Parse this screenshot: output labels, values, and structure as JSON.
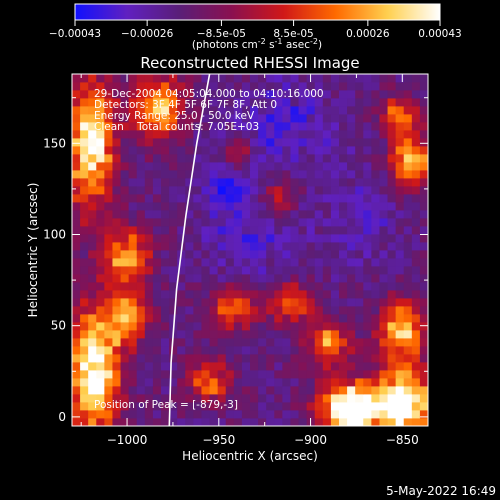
{
  "colorbar": {
    "ticks": [
      "-0.00043",
      "-0.00026",
      "-8.5e-05",
      "8.5e-05",
      "0.00026",
      "0.00043"
    ],
    "units_main": "(photons cm",
    "units_sup1": "-2",
    "units_mid1": " s",
    "units_sup2": "-1",
    "units_mid2": " asec",
    "units_sup3": "-2",
    "units_end": ")",
    "range": [
      -0.00043,
      0.00043
    ]
  },
  "plot": {
    "title": "Reconstructed RHESSI Image",
    "xlabel": "Heliocentric X (arcsec)",
    "ylabel": "Heliocentric Y (arcsec)"
  },
  "annotations": {
    "time": "29-Dec-2004 04:05:04.000 to 04:10:16.000",
    "detectors": "Detectors: 3F 4F 5F 6F 7F 8F, Att 0",
    "energy": "Energy Range: 25.0 - 50.0 keV",
    "clean": "Clean    Total counts: 7.05E+03",
    "peak": "Position of Peak = [-879,-3]"
  },
  "footer": {
    "timestamp": "5-May-2022 16:49"
  },
  "chart_data": {
    "type": "heatmap",
    "title": "Reconstructed RHESSI Image",
    "xlabel": "Heliocentric X (arcsec)",
    "ylabel": "Heliocentric Y (arcsec)",
    "xlim": [
      -1030,
      -836
    ],
    "ylim": [
      -5,
      188
    ],
    "xticks": [
      -1000,
      -950,
      -900,
      -850
    ],
    "yticks": [
      0,
      50,
      100,
      150
    ],
    "xtick_labels": [
      "−1000",
      "−950",
      "−900",
      "−850"
    ],
    "ytick_labels": [
      "0",
      "50",
      "100",
      "150"
    ],
    "colorscale": [
      "#1010ff",
      "#6020c0",
      "#5a1e78",
      "#8a1050",
      "#d01818",
      "#ff6a00",
      "#ffd050",
      "#ffffff"
    ],
    "grid": false,
    "limb_curve": [
      [
        -977,
        -5
      ],
      [
        -976,
        30
      ],
      [
        -973,
        70
      ],
      [
        -968,
        110
      ],
      [
        -962,
        150
      ],
      [
        -955,
        188
      ]
    ],
    "hotspots": [
      {
        "x": -877,
        "y": 5,
        "sx": 12,
        "sy": 10,
        "v": 1.0
      },
      {
        "x": -848,
        "y": 8,
        "sx": 10,
        "sy": 14,
        "v": 0.8
      },
      {
        "x": -1018,
        "y": 25,
        "sx": 10,
        "sy": 24,
        "v": 0.8
      },
      {
        "x": -1020,
        "y": 150,
        "sx": 9,
        "sy": 25,
        "v": 0.75
      },
      {
        "x": -983,
        "y": 170,
        "sx": 10,
        "sy": 12,
        "v": 0.6
      },
      {
        "x": -1000,
        "y": 88,
        "sx": 9,
        "sy": 11,
        "v": 0.55
      },
      {
        "x": -845,
        "y": 140,
        "sx": 8,
        "sy": 10,
        "v": 0.65
      },
      {
        "x": -852,
        "y": 165,
        "sx": 7,
        "sy": 7,
        "v": 0.5
      },
      {
        "x": -850,
        "y": 48,
        "sx": 9,
        "sy": 11,
        "v": 0.6
      },
      {
        "x": -942,
        "y": 60,
        "sx": 9,
        "sy": 8,
        "v": 0.45
      },
      {
        "x": -910,
        "y": 62,
        "sx": 8,
        "sy": 8,
        "v": 0.45
      },
      {
        "x": -890,
        "y": 40,
        "sx": 8,
        "sy": 8,
        "v": 0.5
      },
      {
        "x": -955,
        "y": 20,
        "sx": 8,
        "sy": 8,
        "v": 0.45
      },
      {
        "x": -1000,
        "y": 55,
        "sx": 8,
        "sy": 10,
        "v": 0.5
      },
      {
        "x": -917,
        "y": 120,
        "sx": 7,
        "sy": 7,
        "v": 0.35
      },
      {
        "x": -940,
        "y": 145,
        "sx": 6,
        "sy": 6,
        "v": 0.3
      }
    ],
    "coldspots": [
      {
        "x": -915,
        "y": 160,
        "sx": 22,
        "sy": 18,
        "v": 0.5
      },
      {
        "x": -930,
        "y": 100,
        "sx": 20,
        "sy": 18,
        "v": 0.45
      },
      {
        "x": -870,
        "y": 110,
        "sx": 14,
        "sy": 18,
        "v": 0.4
      },
      {
        "x": -945,
        "y": 125,
        "sx": 10,
        "sy": 10,
        "v": 0.5
      }
    ]
  }
}
